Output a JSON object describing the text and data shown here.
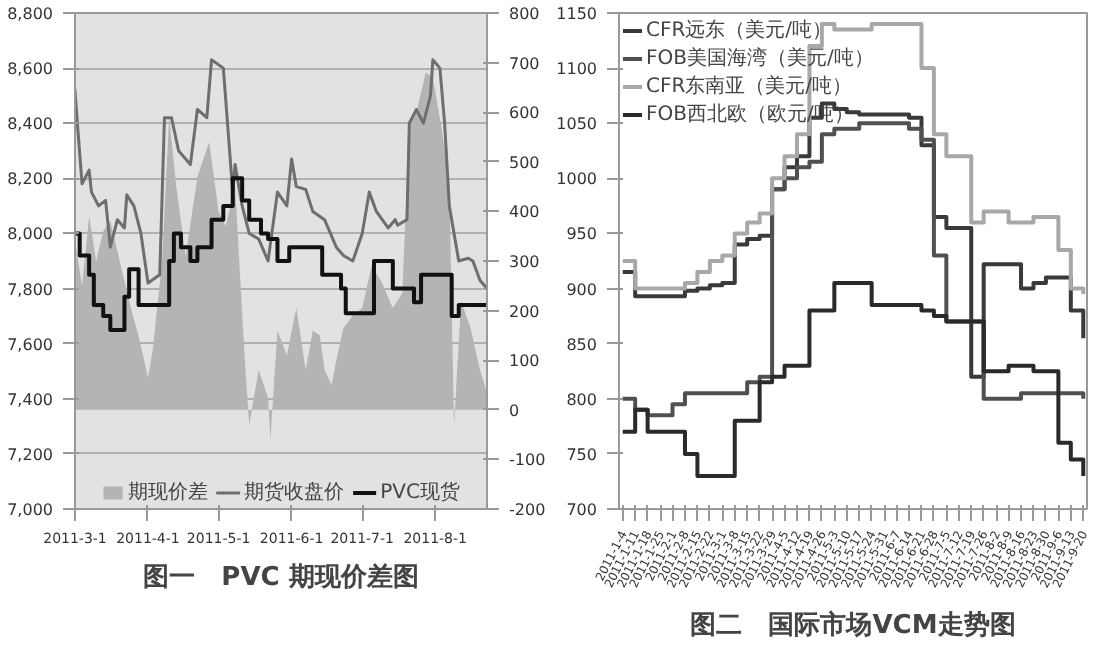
{
  "chart_data": [
    {
      "type": "line",
      "title": "图一　PVC 期现价差图",
      "legend": "bottom",
      "grid": "y",
      "xlim": [
        "2011-03-01",
        "2011-08-23"
      ],
      "xticks": [
        {
          "value": "2011-03-01",
          "label": "2011-3-1"
        },
        {
          "value": "2011-04-01",
          "label": "2011-4-1"
        },
        {
          "value": "2011-05-01",
          "label": "2011-5-1"
        },
        {
          "value": "2011-06-01",
          "label": "2011-6-1"
        },
        {
          "value": "2011-07-01",
          "label": "2011-7-1"
        },
        {
          "value": "2011-08-01",
          "label": "2011-8-1"
        }
      ],
      "ylim": [
        7000,
        8800
      ],
      "yticks": [
        {
          "value": 7000,
          "label": "7,000"
        },
        {
          "value": 7200,
          "label": "7,200"
        },
        {
          "value": 7400,
          "label": "7,400"
        },
        {
          "value": 7600,
          "label": "7,600"
        },
        {
          "value": 7800,
          "label": "7,800"
        },
        {
          "value": 8000,
          "label": "8,000"
        },
        {
          "value": 8200,
          "label": "8,200"
        },
        {
          "value": 8400,
          "label": "8,400"
        },
        {
          "value": 8600,
          "label": "8,600"
        },
        {
          "value": 8800,
          "label": "8,800"
        }
      ],
      "y2lim": [
        -200,
        800
      ],
      "y2ticks": [
        -200,
        -100,
        0,
        100,
        200,
        300,
        400,
        500,
        600,
        700,
        800
      ],
      "series": [
        {
          "name": "期现价差",
          "type": "area",
          "axis": "y2",
          "color": "#b4b4b4",
          "x": [
            "2011-03-01",
            "2011-03-04",
            "2011-03-07",
            "2011-03-10",
            "2011-03-13",
            "2011-03-16",
            "2011-03-20",
            "2011-03-25",
            "2011-03-28",
            "2011-04-01",
            "2011-04-03",
            "2011-04-07",
            "2011-04-10",
            "2011-04-13",
            "2011-04-17",
            "2011-04-22",
            "2011-04-27",
            "2011-05-01",
            "2011-05-04",
            "2011-05-08",
            "2011-05-12",
            "2011-05-14",
            "2011-05-18",
            "2011-05-22",
            "2011-05-23",
            "2011-05-26",
            "2011-05-30",
            "2011-06-03",
            "2011-06-07",
            "2011-06-10",
            "2011-06-13",
            "2011-06-15",
            "2011-06-18",
            "2011-06-20",
            "2011-06-23",
            "2011-06-27",
            "2011-07-01",
            "2011-07-05",
            "2011-07-09",
            "2011-07-14",
            "2011-07-18",
            "2011-07-21",
            "2011-07-24",
            "2011-07-28",
            "2011-07-31",
            "2011-08-04",
            "2011-08-07",
            "2011-08-09",
            "2011-08-12",
            "2011-08-16",
            "2011-08-20",
            "2011-08-23"
          ],
          "values": [
            340,
            250,
            390,
            300,
            360,
            380,
            300,
            200,
            150,
            65,
            120,
            300,
            590,
            450,
            310,
            470,
            540,
            400,
            370,
            450,
            110,
            -30,
            80,
            25,
            -60,
            160,
            110,
            205,
            80,
            160,
            150,
            80,
            50,
            100,
            165,
            190,
            205,
            290,
            260,
            205,
            235,
            570,
            600,
            680,
            670,
            560,
            450,
            -30,
            220,
            165,
            80,
            35
          ]
        },
        {
          "name": "期货收盘价",
          "type": "line",
          "color": "#6e6e6e",
          "x": [
            "2011-03-01",
            "2011-03-02",
            "2011-03-04",
            "2011-03-07",
            "2011-03-08",
            "2011-03-11",
            "2011-03-14",
            "2011-03-16",
            "2011-03-19",
            "2011-03-22",
            "2011-03-23",
            "2011-03-26",
            "2011-03-29",
            "2011-04-01",
            "2011-04-06",
            "2011-04-08",
            "2011-04-11",
            "2011-04-14",
            "2011-04-19",
            "2011-04-22",
            "2011-04-26",
            "2011-04-28",
            "2011-05-03",
            "2011-05-07",
            "2011-05-08",
            "2011-05-11",
            "2011-05-14",
            "2011-05-18",
            "2011-05-22",
            "2011-05-26",
            "2011-05-30",
            "2011-06-01",
            "2011-06-03",
            "2011-06-07",
            "2011-06-10",
            "2011-06-15",
            "2011-06-18",
            "2011-06-20",
            "2011-06-23",
            "2011-06-27",
            "2011-07-01",
            "2011-07-04",
            "2011-07-07",
            "2011-07-12",
            "2011-07-15",
            "2011-07-16",
            "2011-07-20",
            "2011-07-21",
            "2011-07-24",
            "2011-07-27",
            "2011-07-30",
            "2011-07-31",
            "2011-08-03",
            "2011-08-05",
            "2011-08-07",
            "2011-08-09",
            "2011-08-11",
            "2011-08-15",
            "2011-08-17",
            "2011-08-20",
            "2011-08-23"
          ],
          "values": [
            8520,
            8400,
            8180,
            8230,
            8150,
            8100,
            8120,
            7950,
            8050,
            8020,
            8140,
            8100,
            8000,
            7820,
            7850,
            8420,
            8420,
            8300,
            8250,
            8450,
            8420,
            8630,
            8600,
            8150,
            8250,
            8100,
            8000,
            7980,
            7900,
            8150,
            8100,
            8270,
            8170,
            8160,
            8080,
            8050,
            7990,
            7950,
            7920,
            7900,
            8000,
            8150,
            8080,
            8020,
            8050,
            8030,
            8050,
            8400,
            8450,
            8400,
            8500,
            8630,
            8600,
            8400,
            8100,
            8000,
            7900,
            7910,
            7900,
            7830,
            7800
          ]
        },
        {
          "name": "PVC现货",
          "type": "step",
          "color": "#111111",
          "x": [
            "2011-03-01",
            "2011-03-03",
            "2011-03-07",
            "2011-03-09",
            "2011-03-13",
            "2011-03-16",
            "2011-03-22",
            "2011-03-24",
            "2011-03-28",
            "2011-04-04",
            "2011-04-10",
            "2011-04-12",
            "2011-04-15",
            "2011-04-19",
            "2011-04-22",
            "2011-04-26",
            "2011-04-28",
            "2011-05-03",
            "2011-05-07",
            "2011-05-11",
            "2011-05-14",
            "2011-05-19",
            "2011-05-22",
            "2011-05-26",
            "2011-05-31",
            "2011-06-13",
            "2011-06-14",
            "2011-06-22",
            "2011-06-24",
            "2011-07-06",
            "2011-07-14",
            "2011-07-23",
            "2011-07-26",
            "2011-08-08",
            "2011-08-11",
            "2011-08-23"
          ],
          "values": [
            8000,
            7920,
            7850,
            7740,
            7700,
            7650,
            7770,
            7870,
            7740,
            7740,
            7900,
            8000,
            7950,
            7900,
            7950,
            7950,
            8050,
            8100,
            8200,
            8120,
            8050,
            8000,
            7980,
            7900,
            7950,
            7950,
            7850,
            7800,
            7710,
            7900,
            7800,
            7750,
            7850,
            7700,
            7740,
            7740
          ]
        }
      ]
    },
    {
      "type": "step",
      "title": "图二　国际市场VCM走势图",
      "legend": "top left",
      "categories": [
        "2011-1-4",
        "2011-1-11",
        "2011-1-18",
        "2011-1-25",
        "2011-2-1",
        "2011-2-8",
        "2011-2-15",
        "2011-2-22",
        "2011-3-1",
        "2011-3-8",
        "2011-3-15",
        "2011-3-22",
        "2011-3-29",
        "2011-4-5",
        "2011-4-12",
        "2011-4-19",
        "2011-4-26",
        "2011-5-3",
        "2011-5-10",
        "2011-5-17",
        "2011-5-24",
        "2011-5-31",
        "2011-6-7",
        "2011-6-14",
        "2011-6-21",
        "2011-6-28",
        "2011-7-5",
        "2011-7-12",
        "2011-7-19",
        "2011-7-26",
        "2011-8-2",
        "2011-8-9",
        "2011-8-16",
        "2011-8-23",
        "2011-8-30",
        "2011-9-6",
        "2011-9-13",
        "2011-9-20"
      ],
      "ylim": [
        700,
        1150
      ],
      "yticks": [
        700,
        750,
        800,
        850,
        900,
        950,
        1000,
        1050,
        1100,
        1150
      ],
      "series": [
        {
          "name": "CFR远东（美元/吨）",
          "color": "#3a3a3a",
          "values": [
            915,
            893,
            893,
            893,
            893,
            898,
            900,
            903,
            905,
            940,
            945,
            948,
            990,
            1010,
            1020,
            1055,
            1068,
            1063,
            1060,
            1058,
            1058,
            1058,
            1058,
            1055,
            1030,
            965,
            955,
            955,
            820,
            922,
            922,
            922,
            900,
            905,
            910,
            910,
            880,
            855
          ]
        },
        {
          "name": "FOB美国海湾（美元/吨）",
          "color": "#505050",
          "values": [
            800,
            790,
            785,
            785,
            795,
            805,
            805,
            805,
            805,
            805,
            815,
            820,
            990,
            1000,
            1010,
            1015,
            1040,
            1045,
            1045,
            1050,
            1050,
            1050,
            1050,
            1045,
            1035,
            930,
            870,
            870,
            870,
            800,
            800,
            800,
            805,
            805,
            805,
            805,
            805,
            800
          ]
        },
        {
          "name": "CFR东南亚（美元/吨）",
          "color": "#a8a8a8",
          "values": [
            925,
            900,
            900,
            900,
            900,
            905,
            915,
            925,
            930,
            950,
            960,
            968,
            1000,
            1020,
            1040,
            1120,
            1140,
            1135,
            1135,
            1135,
            1140,
            1140,
            1140,
            1140,
            1100,
            1040,
            1020,
            1020,
            960,
            970,
            970,
            960,
            960,
            965,
            965,
            935,
            900,
            895
          ]
        },
        {
          "name": "FOB西北欧（欧元/吨）",
          "color": "#2a2a2a",
          "values": [
            770,
            790,
            770,
            770,
            770,
            750,
            730,
            730,
            730,
            780,
            780,
            815,
            820,
            830,
            830,
            880,
            880,
            905,
            905,
            905,
            885,
            885,
            885,
            885,
            880,
            875,
            870,
            870,
            870,
            825,
            825,
            830,
            830,
            825,
            825,
            760,
            745,
            730
          ]
        }
      ]
    }
  ]
}
